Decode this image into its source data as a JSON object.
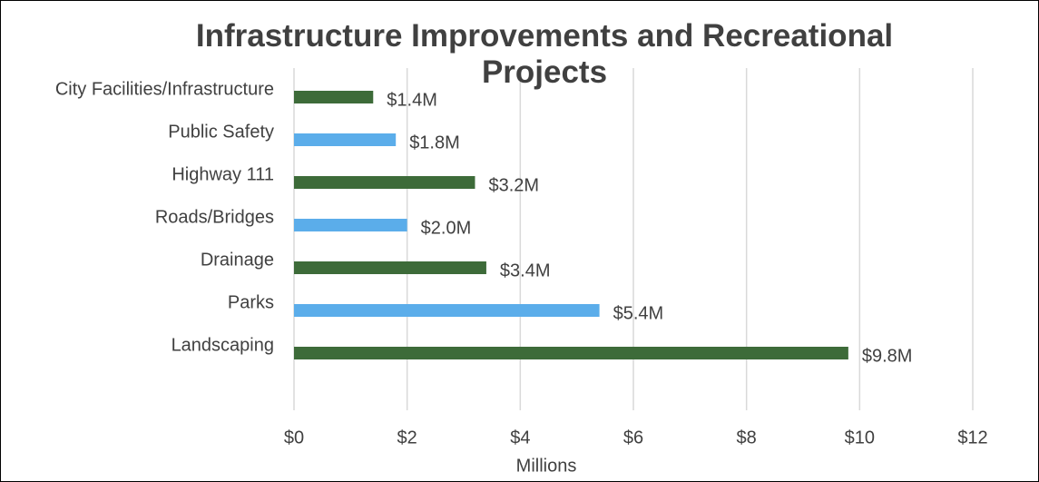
{
  "chart_data": {
    "type": "hbar",
    "title": "Infrastructure Improvements and Recreational Projects",
    "categories": [
      "City Facilities/Infrastructure",
      "Public Safety",
      "Highway 111",
      "Roads/Bridges",
      "Drainage",
      "Parks",
      "Landscaping"
    ],
    "values": [
      1.4,
      1.8,
      3.2,
      2.0,
      3.4,
      5.4,
      9.8
    ],
    "value_labels": [
      "$1.4M",
      "$1.8M",
      "$3.2M",
      "$2.0M",
      "$3.4M",
      "$5.4M",
      "$9.8M"
    ],
    "colors": [
      "#3d6b39",
      "#5badea",
      "#3d6b39",
      "#5badea",
      "#3d6b39",
      "#5badea",
      "#3d6b39"
    ],
    "x_label": "Millions",
    "xlim": [
      0,
      12
    ],
    "xticks": [
      {
        "value": 0,
        "label": "$0"
      },
      {
        "value": 2,
        "label": "$2"
      },
      {
        "value": 4,
        "label": "$4"
      },
      {
        "value": 6,
        "label": "$6"
      },
      {
        "value": 8,
        "label": "$8"
      },
      {
        "value": 10,
        "label": "$10"
      },
      {
        "value": 12,
        "label": "$12"
      }
    ],
    "grid": true
  }
}
